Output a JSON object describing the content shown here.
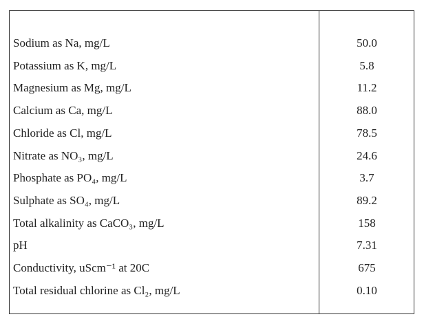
{
  "table": {
    "rows": [
      [
        "Sodium as Na, mg/L",
        "50.0"
      ],
      [
        "Potassium as K, mg/L",
        "5.8"
      ],
      [
        "Magnesium as Mg, mg/L",
        "11.2"
      ],
      [
        "Calcium as Ca, mg/L",
        "88.0"
      ],
      [
        "Chloride as Cl, mg/L",
        "78.5"
      ],
      [
        "Nitrate as NO₃, mg/L",
        "24.6"
      ],
      [
        "Phosphate as PO₄, mg/L",
        "3.7"
      ],
      [
        "Sulphate as SO₄, mg/L",
        "89.2"
      ],
      [
        "Total alkalinity as CaCO₃, mg/L",
        "158"
      ],
      [
        "pH",
        "7.31"
      ],
      [
        "Conductivity, uScm⁻¹ at 20C",
        "675"
      ],
      [
        "Total residual chlorine as Cl₂, mg/L",
        "0.10"
      ]
    ]
  }
}
